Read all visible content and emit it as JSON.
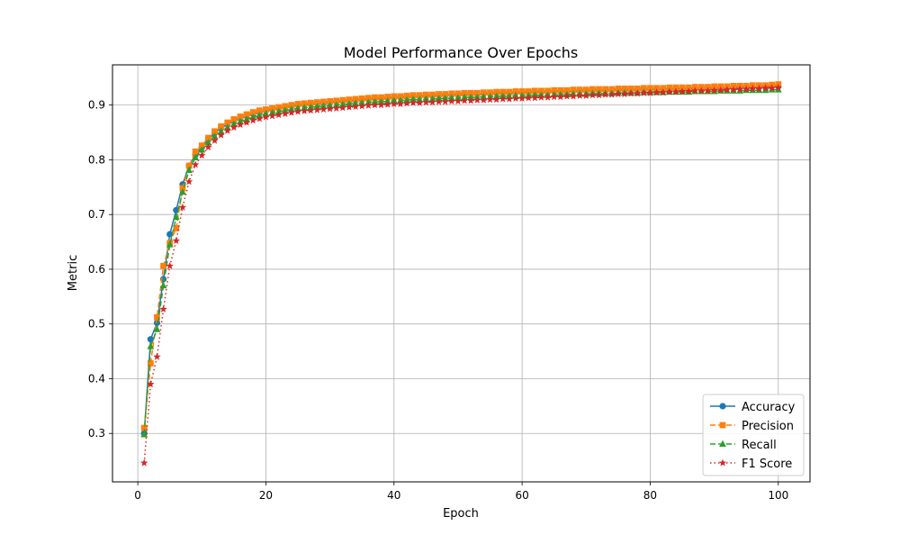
{
  "chart_data": {
    "type": "line",
    "title": "Model Performance Over Epochs",
    "xlabel": "Epoch",
    "ylabel": "Metric",
    "xlim": [
      -3.95,
      104.95
    ],
    "ylim": [
      0.2115,
      0.9735
    ],
    "xticks": [
      0,
      20,
      40,
      60,
      80,
      100
    ],
    "yticks": [
      0.3,
      0.4,
      0.5,
      0.6,
      0.7,
      0.8,
      0.9
    ],
    "grid": true,
    "legend_position": "lower right",
    "x": [
      1,
      2,
      3,
      4,
      5,
      6,
      7,
      8,
      9,
      10,
      11,
      12,
      13,
      14,
      15,
      16,
      17,
      18,
      19,
      20,
      21,
      22,
      23,
      24,
      25,
      26,
      27,
      28,
      29,
      30,
      31,
      32,
      33,
      34,
      35,
      36,
      37,
      38,
      39,
      40,
      41,
      42,
      43,
      44,
      45,
      46,
      47,
      48,
      49,
      50,
      51,
      52,
      53,
      54,
      55,
      56,
      57,
      58,
      59,
      60,
      61,
      62,
      63,
      64,
      65,
      66,
      67,
      68,
      69,
      70,
      71,
      72,
      73,
      74,
      75,
      76,
      77,
      78,
      79,
      80,
      81,
      82,
      83,
      84,
      85,
      86,
      87,
      88,
      89,
      90,
      91,
      92,
      93,
      94,
      95,
      96,
      97,
      98,
      99,
      100
    ],
    "series": [
      {
        "name": "Accuracy",
        "color": "#1f77b4",
        "linestyle": "solid",
        "marker": "circle",
        "values": [
          0.3,
          0.472,
          0.502,
          0.582,
          0.664,
          0.708,
          0.755,
          0.789,
          0.809,
          0.823,
          0.837,
          0.849,
          0.858,
          0.865,
          0.871,
          0.876,
          0.88,
          0.884,
          0.887,
          0.89,
          0.892,
          0.894,
          0.896,
          0.898,
          0.9,
          0.901,
          0.902,
          0.903,
          0.904,
          0.905,
          0.906,
          0.907,
          0.908,
          0.909,
          0.91,
          0.911,
          0.912,
          0.912,
          0.913,
          0.914,
          0.914,
          0.915,
          0.916,
          0.916,
          0.917,
          0.917,
          0.918,
          0.918,
          0.919,
          0.919,
          0.92,
          0.92,
          0.92,
          0.921,
          0.921,
          0.922,
          0.922,
          0.922,
          0.923,
          0.923,
          0.923,
          0.924,
          0.924,
          0.924,
          0.925,
          0.925,
          0.925,
          0.926,
          0.926,
          0.926,
          0.927,
          0.927,
          0.927,
          0.927,
          0.928,
          0.928,
          0.928,
          0.928,
          0.929,
          0.929,
          0.929,
          0.929,
          0.93,
          0.93,
          0.93,
          0.93,
          0.931,
          0.931,
          0.931,
          0.931,
          0.932,
          0.932,
          0.932,
          0.932,
          0.933,
          0.933,
          0.933,
          0.933,
          0.934,
          0.934
        ]
      },
      {
        "name": "Precision",
        "color": "#ff7f0e",
        "linestyle": "dashed",
        "marker": "square",
        "values": [
          0.31,
          0.428,
          0.512,
          0.606,
          0.648,
          0.675,
          0.748,
          0.789,
          0.815,
          0.826,
          0.84,
          0.852,
          0.861,
          0.868,
          0.874,
          0.879,
          0.883,
          0.887,
          0.89,
          0.892,
          0.894,
          0.896,
          0.898,
          0.9,
          0.902,
          0.903,
          0.904,
          0.905,
          0.906,
          0.907,
          0.908,
          0.909,
          0.91,
          0.911,
          0.912,
          0.913,
          0.914,
          0.914,
          0.915,
          0.916,
          0.916,
          0.917,
          0.918,
          0.918,
          0.919,
          0.919,
          0.92,
          0.92,
          0.921,
          0.921,
          0.922,
          0.922,
          0.922,
          0.923,
          0.923,
          0.924,
          0.924,
          0.924,
          0.925,
          0.925,
          0.925,
          0.926,
          0.926,
          0.926,
          0.927,
          0.927,
          0.927,
          0.928,
          0.928,
          0.928,
          0.929,
          0.929,
          0.929,
          0.929,
          0.93,
          0.93,
          0.93,
          0.93,
          0.931,
          0.931,
          0.931,
          0.931,
          0.932,
          0.932,
          0.932,
          0.932,
          0.933,
          0.933,
          0.933,
          0.934,
          0.934,
          0.934,
          0.935,
          0.935,
          0.935,
          0.936,
          0.936,
          0.936,
          0.937,
          0.938
        ]
      },
      {
        "name": "Recall",
        "color": "#2ca02c",
        "linestyle": "dashed",
        "marker": "triangle",
        "values": [
          0.298,
          0.459,
          0.49,
          0.57,
          0.645,
          0.695,
          0.741,
          0.781,
          0.804,
          0.818,
          0.831,
          0.843,
          0.852,
          0.859,
          0.865,
          0.87,
          0.874,
          0.878,
          0.881,
          0.884,
          0.886,
          0.888,
          0.89,
          0.892,
          0.894,
          0.895,
          0.896,
          0.897,
          0.898,
          0.899,
          0.9,
          0.901,
          0.902,
          0.903,
          0.904,
          0.905,
          0.906,
          0.906,
          0.907,
          0.908,
          0.908,
          0.909,
          0.91,
          0.91,
          0.911,
          0.911,
          0.912,
          0.912,
          0.913,
          0.913,
          0.914,
          0.914,
          0.914,
          0.915,
          0.915,
          0.916,
          0.916,
          0.916,
          0.917,
          0.917,
          0.917,
          0.918,
          0.918,
          0.918,
          0.919,
          0.919,
          0.919,
          0.92,
          0.92,
          0.92,
          0.921,
          0.921,
          0.921,
          0.921,
          0.922,
          0.922,
          0.922,
          0.922,
          0.923,
          0.923,
          0.923,
          0.923,
          0.924,
          0.924,
          0.924,
          0.924,
          0.925,
          0.925,
          0.925,
          0.925,
          0.926,
          0.926,
          0.926,
          0.926,
          0.927,
          0.927,
          0.927,
          0.927,
          0.928,
          0.928
        ]
      },
      {
        "name": "F1 Score",
        "color": "#d62728",
        "linestyle": "dotted",
        "marker": "star",
        "values": [
          0.246,
          0.39,
          0.44,
          0.527,
          0.606,
          0.652,
          0.713,
          0.76,
          0.791,
          0.808,
          0.823,
          0.835,
          0.845,
          0.853,
          0.859,
          0.864,
          0.868,
          0.872,
          0.875,
          0.878,
          0.88,
          0.882,
          0.884,
          0.886,
          0.888,
          0.889,
          0.89,
          0.891,
          0.892,
          0.893,
          0.894,
          0.895,
          0.896,
          0.897,
          0.898,
          0.899,
          0.9,
          0.9,
          0.901,
          0.902,
          0.902,
          0.903,
          0.904,
          0.904,
          0.905,
          0.905,
          0.906,
          0.906,
          0.907,
          0.907,
          0.908,
          0.908,
          0.909,
          0.909,
          0.91,
          0.91,
          0.911,
          0.911,
          0.912,
          0.912,
          0.913,
          0.913,
          0.914,
          0.914,
          0.915,
          0.915,
          0.916,
          0.916,
          0.917,
          0.917,
          0.918,
          0.918,
          0.919,
          0.919,
          0.92,
          0.92,
          0.921,
          0.921,
          0.922,
          0.922,
          0.923,
          0.923,
          0.924,
          0.924,
          0.925,
          0.925,
          0.926,
          0.926,
          0.926,
          0.927,
          0.927,
          0.928,
          0.928,
          0.929,
          0.929,
          0.93,
          0.93,
          0.931,
          0.931,
          0.932
        ]
      }
    ]
  }
}
